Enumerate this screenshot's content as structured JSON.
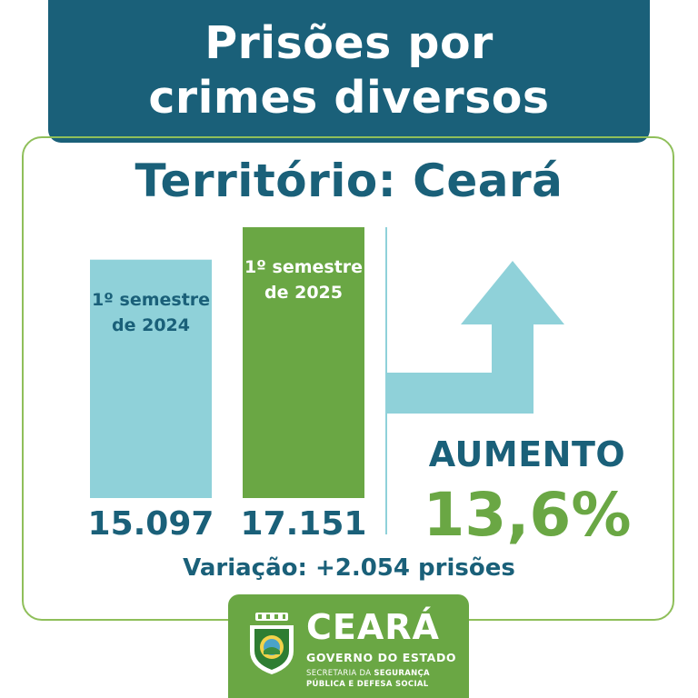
{
  "header": {
    "title_line1": "Prisões por",
    "title_line2": "crimes diversos"
  },
  "territory": "Território: Ceará",
  "chart_data": {
    "type": "bar",
    "categories": [
      "1º semestre de 2024",
      "1º semestre de 2025"
    ],
    "values": [
      15097,
      17151
    ],
    "value_labels": [
      "15.097",
      "17.151"
    ],
    "category_lines": [
      [
        "1º semestre",
        "de 2024"
      ],
      [
        "1º semestre",
        "de 2025"
      ]
    ],
    "colors": [
      "#8fd1d9",
      "#6aa744"
    ],
    "label_colors": [
      "#1a6079",
      "#ffffff"
    ],
    "ylim": [
      0,
      17151
    ]
  },
  "indicator": {
    "label": "AUMENTO",
    "value": "13,6%",
    "arrow_color": "#8fd1d9"
  },
  "variation": "Variação: +2.054 prisões",
  "footer": {
    "brand": "CEARÁ",
    "gov": "GOVERNO DO ESTADO",
    "sec_prefix": "SECRETARIA DA ",
    "sec_bold": "SEGURANÇA",
    "sec_line2": "PÚBLICA E DEFESA SOCIAL"
  },
  "colors": {
    "primary": "#1a6079",
    "green": "#6aa744",
    "light_blue": "#8fd1d9"
  }
}
